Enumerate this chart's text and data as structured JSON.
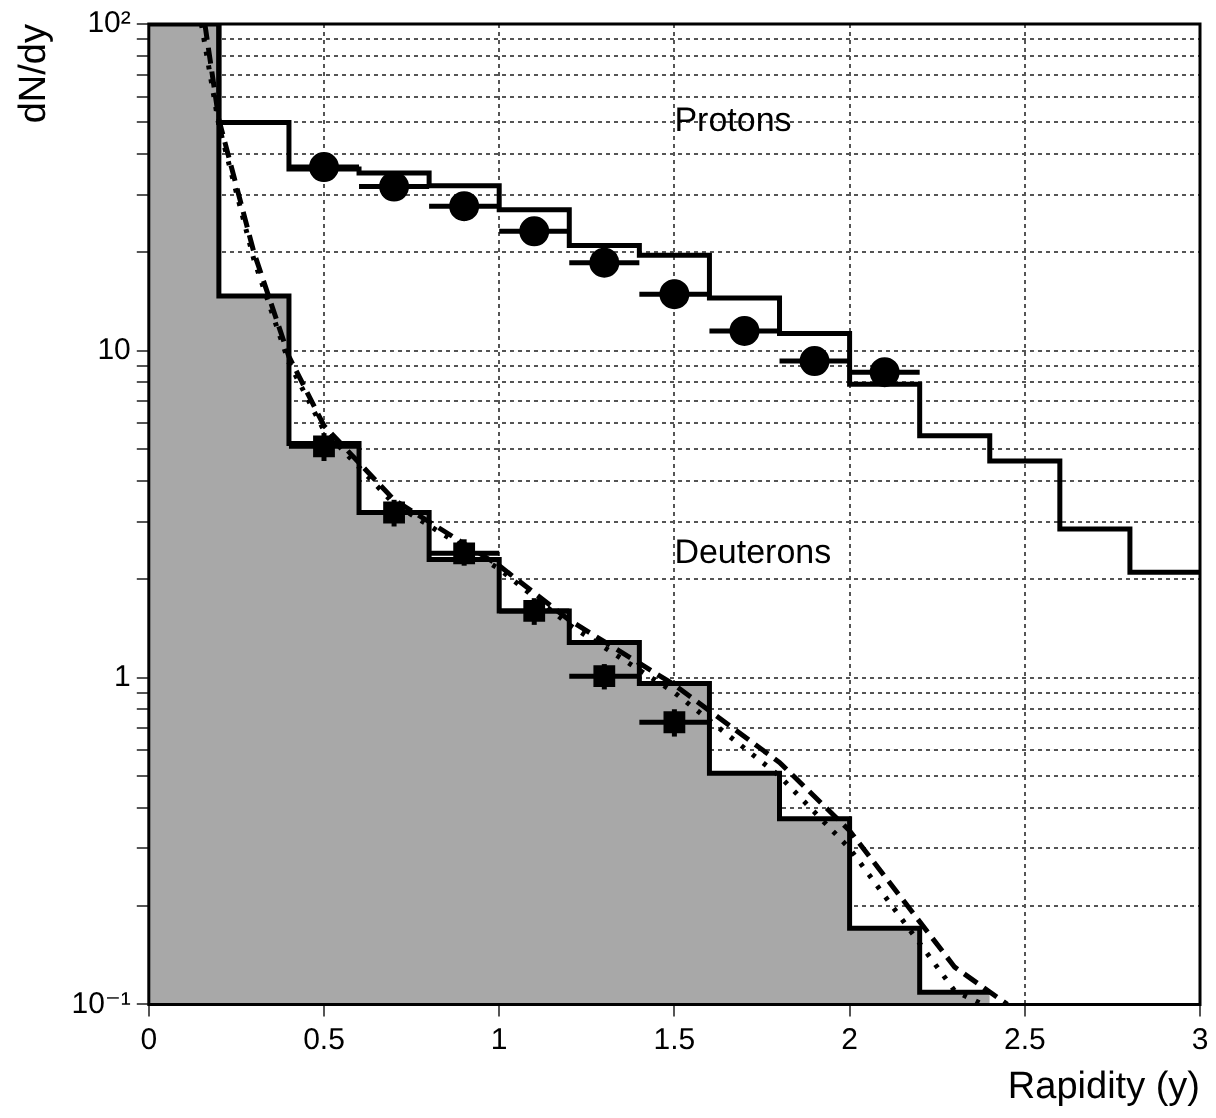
{
  "chart_data": {
    "type": "line",
    "xlabel": "Rapidity (y)",
    "ylabel": "dN/dy",
    "log": "y",
    "grid": true,
    "legend": false,
    "xlim": [
      0,
      3
    ],
    "xticks": [
      0,
      0.5,
      1,
      1.5,
      2,
      2.5,
      3
    ],
    "ylim": [
      0.1,
      100
    ],
    "yticks": [
      {
        "value": 0.1,
        "label": "10⁻¹"
      },
      {
        "value": 0.2,
        "label": null
      },
      {
        "value": 0.3,
        "label": null
      },
      {
        "value": 0.4,
        "label": null
      },
      {
        "value": 0.5,
        "label": null
      },
      {
        "value": 0.6,
        "label": null
      },
      {
        "value": 0.7,
        "label": null
      },
      {
        "value": 0.8,
        "label": null
      },
      {
        "value": 0.9,
        "label": null
      },
      1,
      {
        "value": 2,
        "label": null
      },
      {
        "value": 3,
        "label": null
      },
      {
        "value": 4,
        "label": null
      },
      {
        "value": 5,
        "label": null
      },
      {
        "value": 6,
        "label": null
      },
      {
        "value": 7,
        "label": null
      },
      {
        "value": 8,
        "label": null
      },
      {
        "value": 9,
        "label": null
      },
      10,
      {
        "value": 20,
        "label": null
      },
      {
        "value": 30,
        "label": null
      },
      {
        "value": 40,
        "label": null
      },
      {
        "value": 50,
        "label": null
      },
      {
        "value": 60,
        "label": null
      },
      {
        "value": 70,
        "label": null
      },
      {
        "value": 80,
        "label": null
      },
      {
        "value": 90,
        "label": null
      },
      {
        "value": 100,
        "label": "10²"
      }
    ],
    "series": [
      {
        "type": "histogram",
        "color": "#a8a8a8",
        "bins": [
          0,
          0.2,
          0.4,
          0.6,
          0.8,
          1.0,
          1.2,
          1.4,
          1.6,
          1.8,
          2.0,
          2.2,
          2.4
        ],
        "values": [
          100,
          14.7,
          5.2,
          3.2,
          2.3,
          1.6,
          1.28,
          0.96,
          0.51,
          0.37,
          0.171,
          0.109
        ]
      },
      {
        "type": "step",
        "color": "#000000",
        "x": [
          0,
          0.2,
          0.4,
          0.6,
          0.8,
          1.0,
          1.2,
          1.4,
          1.6,
          1.8,
          2.0,
          2.2,
          2.4
        ],
        "values": [
          100,
          14.7,
          5.2,
          3.2,
          2.3,
          1.6,
          1.28,
          0.96,
          0.51,
          0.37,
          0.171,
          0.109,
          0.109
        ]
      },
      {
        "type": "step",
        "color": "#000000",
        "x": [
          0.2,
          0.2,
          0.4,
          0.6,
          0.8,
          1.0,
          1.2,
          1.4,
          1.6,
          1.8,
          2.0,
          2.2,
          2.4,
          2.6,
          2.8,
          3.0
        ],
        "values": [
          100,
          50,
          36,
          35,
          32,
          27,
          21,
          19.6,
          14.5,
          11.3,
          7.9,
          5.5,
          4.6,
          2.85,
          2.1,
          2.1
        ]
      },
      {
        "type": "line",
        "color": "#000000",
        "line_style": "dashed",
        "marker": "none",
        "x": [
          0.16,
          0.2,
          0.3,
          0.4,
          0.5,
          0.7,
          1.0,
          1.2,
          1.5,
          1.8,
          2.0,
          2.3,
          2.45
        ],
        "values": [
          100,
          51,
          20,
          9.6,
          5.9,
          3.5,
          2.2,
          1.5,
          0.95,
          0.55,
          0.34,
          0.13,
          0.1
        ]
      },
      {
        "type": "line",
        "color": "#000000",
        "line_style": "dotted",
        "marker": "none",
        "x": [
          0.15,
          0.2,
          0.3,
          0.4,
          0.5,
          0.7,
          1.0,
          1.2,
          1.5,
          1.8,
          2.0,
          2.3,
          2.38
        ],
        "values": [
          100,
          49,
          19,
          9.2,
          5.7,
          3.4,
          2.15,
          1.45,
          0.9,
          0.5,
          0.3,
          0.11,
          0.1
        ]
      },
      {
        "type": "scatter",
        "color": "#000000",
        "marker": "circle",
        "x": [
          0.5,
          0.7,
          0.9,
          1.1,
          1.3,
          1.5,
          1.7,
          1.9,
          2.1
        ],
        "values": [
          36.5,
          31.8,
          27.7,
          23.2,
          18.6,
          14.9,
          11.5,
          9.3,
          8.6
        ],
        "errors": [
          [
            33,
            40
          ],
          [
            29,
            35
          ],
          [
            25,
            30.5
          ],
          [
            21,
            25.5
          ],
          [
            17,
            20.5
          ],
          [
            13.5,
            16.5
          ],
          [
            10.5,
            12.7
          ],
          [
            8.5,
            10.2
          ],
          [
            7.8,
            9.5
          ]
        ],
        "xerrors": [
          0.1,
          0.1,
          0.1,
          0.1,
          0.1,
          0.1,
          0.1,
          0.1,
          0.1
        ]
      },
      {
        "type": "scatter",
        "color": "#000000",
        "marker": "square",
        "x": [
          0.5,
          0.7,
          0.9,
          1.1,
          1.3,
          1.5
        ],
        "values": [
          5.1,
          3.2,
          2.4,
          1.6,
          1.01,
          0.73
        ],
        "errors": [
          [
            4.6,
            5.6
          ],
          [
            2.9,
            3.5
          ],
          [
            2.2,
            2.65
          ],
          [
            1.45,
            1.75
          ],
          [
            0.92,
            1.1
          ],
          [
            0.66,
            0.8
          ]
        ],
        "xerrors": [
          0.1,
          0.1,
          0.1,
          0.1,
          0.1,
          0.1
        ]
      }
    ],
    "annotations": [
      "Protons",
      "Deuterons"
    ]
  }
}
